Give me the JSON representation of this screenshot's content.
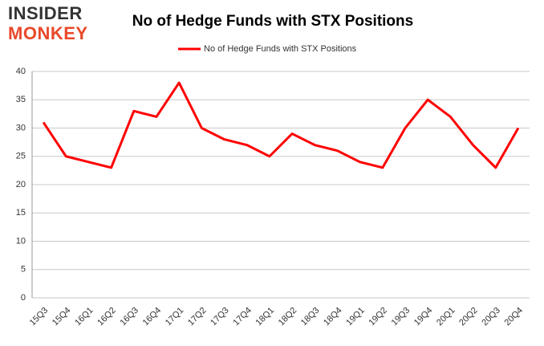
{
  "logo": {
    "line1": "INSIDER",
    "line2": "MONKEY"
  },
  "chart_data": {
    "type": "line",
    "title": "No of Hedge Funds with STX Positions",
    "categories": [
      "15Q3",
      "15Q4",
      "16Q1",
      "16Q2",
      "16Q3",
      "16Q4",
      "17Q1",
      "17Q2",
      "17Q3",
      "17Q4",
      "18Q1",
      "18Q2",
      "18Q3",
      "18Q4",
      "19Q1",
      "19Q2",
      "19Q3",
      "19Q4",
      "20Q1",
      "20Q2",
      "20Q3",
      "20Q4"
    ],
    "series": [
      {
        "name": "No of Hedge Funds with STX Positions",
        "color": "#ff0000",
        "values": [
          31,
          25,
          24,
          23,
          33,
          32,
          38,
          30,
          28,
          27,
          25,
          29,
          27,
          26,
          24,
          23,
          30,
          35,
          32,
          27,
          23,
          30
        ]
      }
    ],
    "ylim": [
      0,
      40
    ],
    "yticks": [
      0,
      5,
      10,
      15,
      20,
      25,
      30,
      35,
      40
    ],
    "grid": true,
    "legend": "top"
  }
}
